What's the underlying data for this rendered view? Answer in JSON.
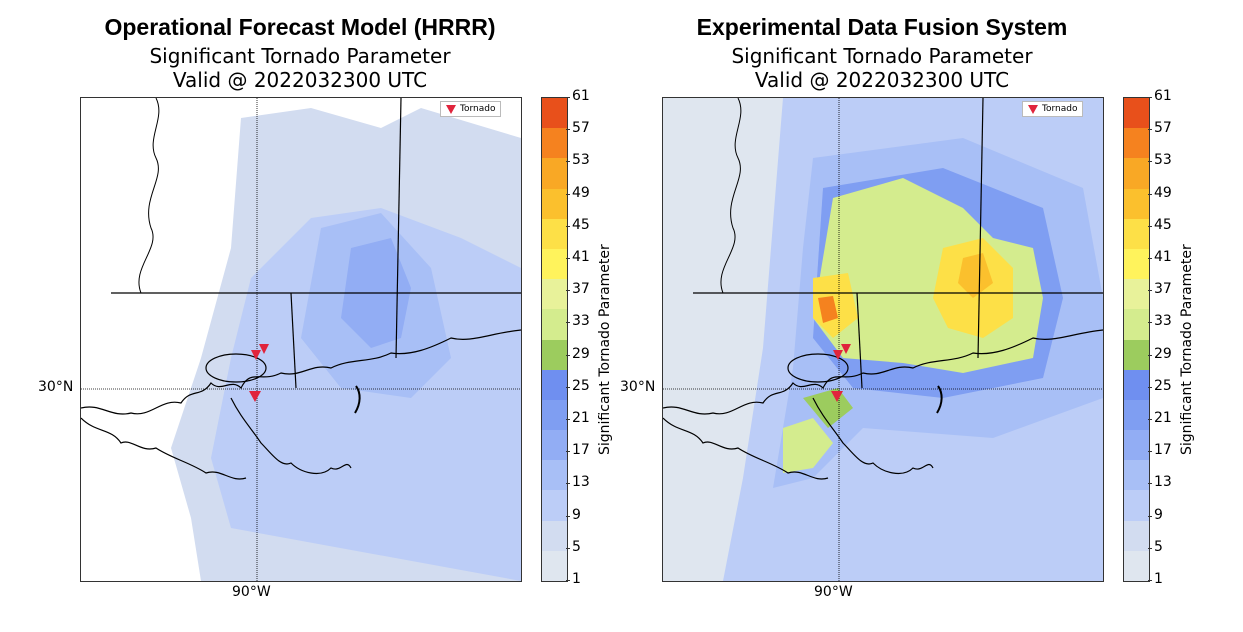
{
  "panels": [
    {
      "title": "Operational Forecast Model (HRRR)",
      "subtitle": "Significant Tornado Parameter",
      "valid": "Valid @ 2022032300 UTC",
      "lat_label": "30°N",
      "lon_label": "90°W",
      "legend": "Tornado",
      "colorbar_label": "Significant Tornado Parameter"
    },
    {
      "title": "Experimental Data Fusion System",
      "subtitle": "Significant Tornado Parameter",
      "valid": "Valid @ 2022032300 UTC",
      "lat_label": "30°N",
      "lon_label": "90°W",
      "legend": "Tornado",
      "colorbar_label": "Significant Tornado Parameter"
    }
  ],
  "colorbar": {
    "ticks": [
      "61",
      "57",
      "53",
      "49",
      "45",
      "41",
      "37",
      "33",
      "29",
      "25",
      "21",
      "17",
      "13",
      "9",
      "5",
      "1"
    ],
    "colors_top_to_bottom": [
      "#e8501b",
      "#f5821f",
      "#f9a825",
      "#fbc02d",
      "#fde047",
      "#fff35c",
      "#e8f29a",
      "#d4ec8e",
      "#9ccc5e",
      "#6f8ff0",
      "#7f9ef2",
      "#92adf4",
      "#a8bff6",
      "#bccdf7",
      "#d2dcf0",
      "#dfe6ef"
    ]
  },
  "markers": {
    "tornado_color": "#e0243c"
  }
}
